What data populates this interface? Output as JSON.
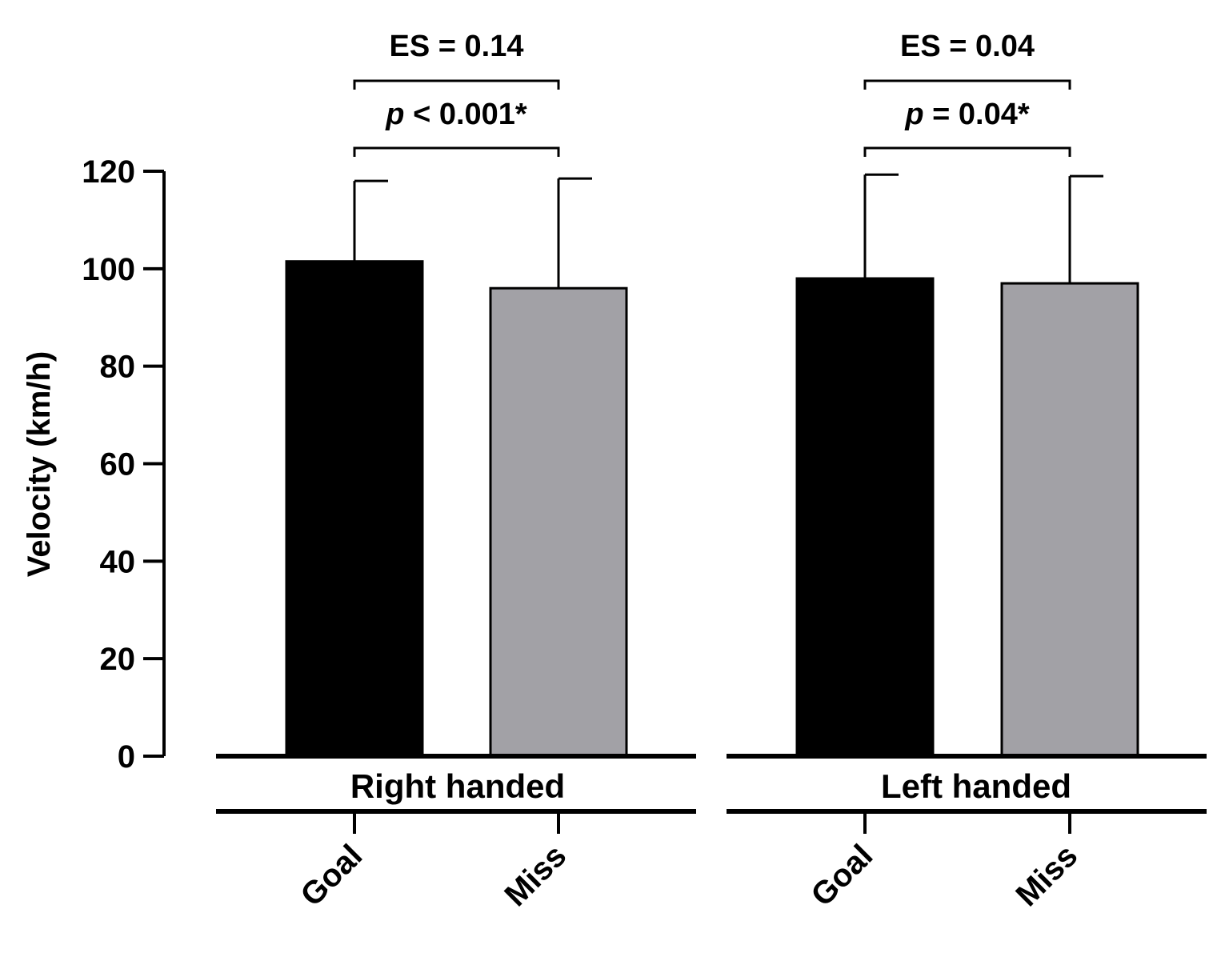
{
  "chart_data": {
    "type": "bar",
    "ylabel": "Velocity (km/h)",
    "ylim": [
      0,
      120
    ],
    "yticks": [
      0,
      20,
      40,
      60,
      80,
      100,
      120
    ],
    "grid": false,
    "colors": {
      "Goal": "#000000",
      "Miss": "#a2a1a6"
    },
    "groups": [
      {
        "name": "Right handed",
        "bars": [
          {
            "category": "Goal",
            "value": 101.5,
            "error": 16.5
          },
          {
            "category": "Miss",
            "value": 96.0,
            "error": 22.5
          }
        ],
        "effect_size": "ES = 0.14",
        "p_label": "p",
        "p_value": " < 0.001*"
      },
      {
        "name": "Left handed",
        "bars": [
          {
            "category": "Goal",
            "value": 98.0,
            "error": 21.3
          },
          {
            "category": "Miss",
            "value": 97.0,
            "error": 22.0
          }
        ],
        "effect_size": "ES = 0.04",
        "p_label": "p",
        "p_value": " = 0.04*"
      }
    ]
  }
}
